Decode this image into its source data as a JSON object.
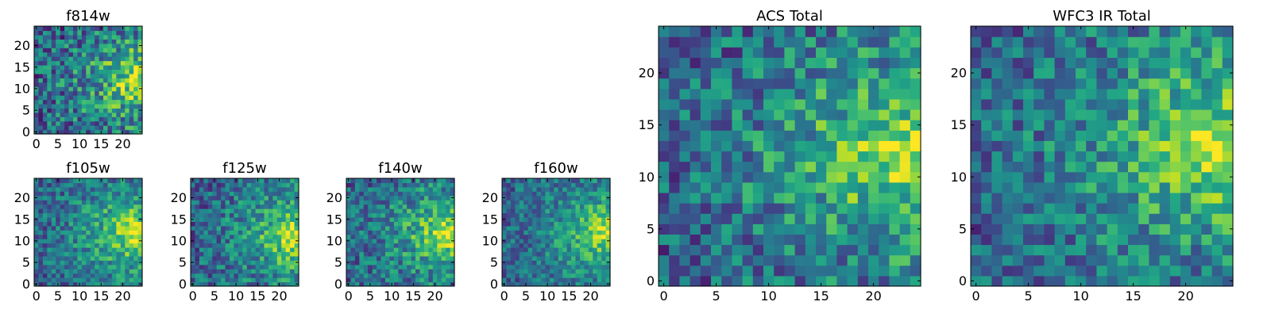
{
  "chart_data": [
    {
      "type": "heatmap",
      "title": "f814w",
      "grid_size": 25,
      "xlim": [
        0,
        24
      ],
      "ylim": [
        0,
        24
      ],
      "xticks": [
        "0",
        "5",
        "10",
        "15",
        "20"
      ],
      "yticks": [
        "0",
        "5",
        "10",
        "15",
        "20"
      ],
      "colormap": "viridis",
      "hotspot": {
        "x": 24,
        "y": 12
      },
      "noise": 0.3
    },
    {
      "type": "heatmap",
      "title": "f105w",
      "grid_size": 25,
      "xlim": [
        0,
        24
      ],
      "ylim": [
        0,
        24
      ],
      "xticks": [
        "0",
        "5",
        "10",
        "15",
        "20"
      ],
      "yticks": [
        "0",
        "5",
        "10",
        "15",
        "20"
      ],
      "colormap": "viridis",
      "hotspot": {
        "x": 23,
        "y": 12
      },
      "noise": 0.22
    },
    {
      "type": "heatmap",
      "title": "f125w",
      "grid_size": 25,
      "xlim": [
        0,
        24
      ],
      "ylim": [
        0,
        24
      ],
      "xticks": [
        "0",
        "5",
        "10",
        "15",
        "20"
      ],
      "yticks": [
        "0",
        "5",
        "10",
        "15",
        "20"
      ],
      "colormap": "viridis",
      "hotspot": {
        "x": 24,
        "y": 11
      },
      "noise": 0.24
    },
    {
      "type": "heatmap",
      "title": "f140w",
      "grid_size": 25,
      "xlim": [
        0,
        24
      ],
      "ylim": [
        0,
        24
      ],
      "xticks": [
        "0",
        "5",
        "10",
        "15",
        "20"
      ],
      "yticks": [
        "0",
        "5",
        "10",
        "15",
        "20"
      ],
      "colormap": "viridis",
      "hotspot": {
        "x": 23,
        "y": 12
      },
      "noise": 0.24
    },
    {
      "type": "heatmap",
      "title": "f160w",
      "grid_size": 25,
      "xlim": [
        0,
        24
      ],
      "ylim": [
        0,
        24
      ],
      "xticks": [
        "0",
        "5",
        "10",
        "15",
        "20"
      ],
      "yticks": [
        "0",
        "5",
        "10",
        "15",
        "20"
      ],
      "colormap": "viridis",
      "hotspot": {
        "x": 24,
        "y": 12
      },
      "noise": 0.2
    },
    {
      "type": "heatmap",
      "title": "ACS Total",
      "grid_size": 25,
      "xlim": [
        0,
        24
      ],
      "ylim": [
        0,
        24
      ],
      "xticks": [
        "0",
        "5",
        "10",
        "15",
        "20"
      ],
      "yticks": [
        "0",
        "5",
        "10",
        "15",
        "20"
      ],
      "colormap": "viridis",
      "hotspot": {
        "x": 23,
        "y": 12
      },
      "noise": 0.26
    },
    {
      "type": "heatmap",
      "title": "WFC3 IR Total",
      "grid_size": 25,
      "xlim": [
        0,
        24
      ],
      "ylim": [
        0,
        24
      ],
      "xticks": [
        "0",
        "5",
        "10",
        "15",
        "20"
      ],
      "yticks": [
        "0",
        "5",
        "10",
        "15",
        "20"
      ],
      "colormap": "viridis",
      "hotspot": {
        "x": 23,
        "y": 13
      },
      "noise": 0.24
    }
  ]
}
